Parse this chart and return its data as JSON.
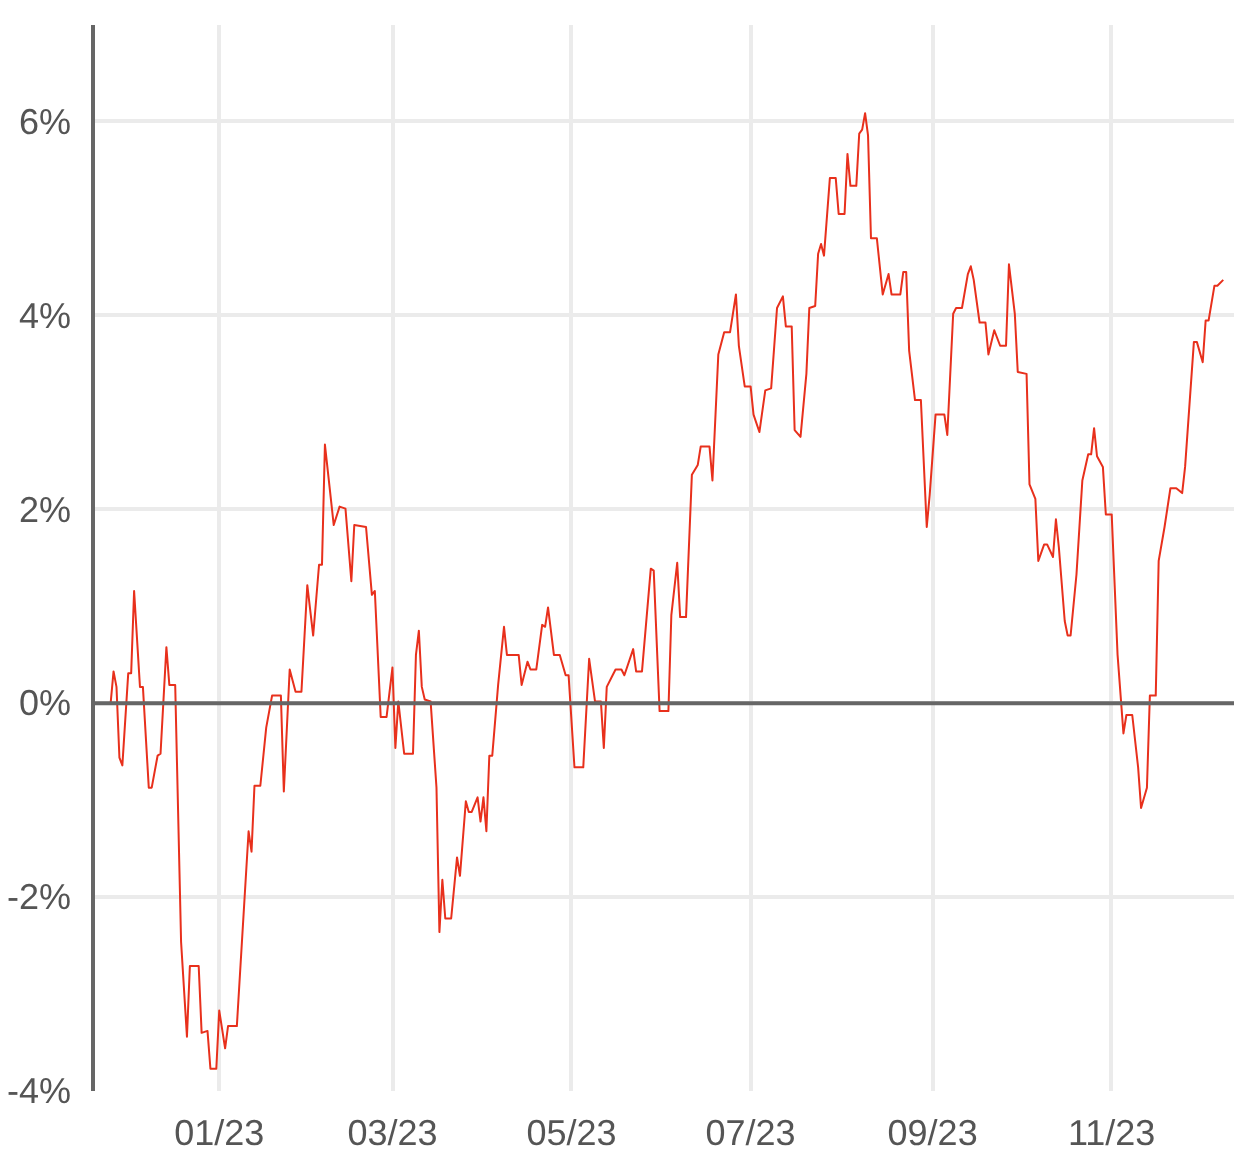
{
  "chart_data": {
    "type": "line",
    "x": [
      "2022-11-25",
      "2022-11-26",
      "2022-11-27",
      "2022-11-28",
      "2022-11-29",
      "2022-12-01",
      "2022-12-02",
      "2022-12-03",
      "2022-12-05",
      "2022-12-06",
      "2022-12-08",
      "2022-12-09",
      "2022-12-11",
      "2022-12-12",
      "2022-12-14",
      "2022-12-15",
      "2022-12-17",
      "2022-12-19",
      "2022-12-21",
      "2022-12-22",
      "2022-12-25",
      "2022-12-26",
      "2022-12-28",
      "2022-12-29",
      "2022-12-31",
      "2023-01-01",
      "2023-01-03",
      "2023-01-04",
      "2023-01-07",
      "2023-01-11",
      "2023-01-12",
      "2023-01-13",
      "2023-01-15",
      "2023-01-17",
      "2023-01-19",
      "2023-01-22",
      "2023-01-23",
      "2023-01-25",
      "2023-01-27",
      "2023-01-29",
      "2023-01-31",
      "2023-02-02",
      "2023-02-04",
      "2023-02-05",
      "2023-02-06",
      "2023-02-09",
      "2023-02-11",
      "2023-02-13",
      "2023-02-15",
      "2023-02-16",
      "2023-02-20",
      "2023-02-22",
      "2023-02-23",
      "2023-02-25",
      "2023-02-27",
      "2023-03-01",
      "2023-03-02",
      "2023-03-03",
      "2023-03-05",
      "2023-03-08",
      "2023-03-09",
      "2023-03-10",
      "2023-03-11",
      "2023-03-12",
      "2023-03-14",
      "2023-03-16",
      "2023-03-17",
      "2023-03-18",
      "2023-03-19",
      "2023-03-21",
      "2023-03-23",
      "2023-03-24",
      "2023-03-26",
      "2023-03-27",
      "2023-03-28",
      "2023-03-30",
      "2023-03-31",
      "2023-04-01",
      "2023-04-02",
      "2023-04-03",
      "2023-04-04",
      "2023-04-06",
      "2023-04-08",
      "2023-04-09",
      "2023-04-13",
      "2023-04-14",
      "2023-04-16",
      "2023-04-17",
      "2023-04-19",
      "2023-04-21",
      "2023-04-22",
      "2023-04-23",
      "2023-04-25",
      "2023-04-27",
      "2023-04-29",
      "2023-04-30",
      "2023-05-02",
      "2023-05-05",
      "2023-05-07",
      "2023-05-09",
      "2023-05-11",
      "2023-05-12",
      "2023-05-13",
      "2023-05-15",
      "2023-05-16",
      "2023-05-18",
      "2023-05-19",
      "2023-05-22",
      "2023-05-23",
      "2023-05-25",
      "2023-05-28",
      "2023-05-29",
      "2023-05-31",
      "2023-06-03",
      "2023-06-04",
      "2023-06-06",
      "2023-06-07",
      "2023-06-09",
      "2023-06-11",
      "2023-06-13",
      "2023-06-14",
      "2023-06-17",
      "2023-06-18",
      "2023-06-20",
      "2023-06-22",
      "2023-06-24",
      "2023-06-26",
      "2023-06-27",
      "2023-06-29",
      "2023-07-01",
      "2023-07-02",
      "2023-07-04",
      "2023-07-06",
      "2023-07-08",
      "2023-07-10",
      "2023-07-12",
      "2023-07-13",
      "2023-07-15",
      "2023-07-16",
      "2023-07-18",
      "2023-07-20",
      "2023-07-21",
      "2023-07-23",
      "2023-07-24",
      "2023-07-25",
      "2023-07-26",
      "2023-07-28",
      "2023-07-30",
      "2023-07-31",
      "2023-08-02",
      "2023-08-03",
      "2023-08-04",
      "2023-08-06",
      "2023-08-07",
      "2023-08-08",
      "2023-08-09",
      "2023-08-10",
      "2023-08-11",
      "2023-08-13",
      "2023-08-15",
      "2023-08-17",
      "2023-08-18",
      "2023-08-21",
      "2023-08-22",
      "2023-08-23",
      "2023-08-24",
      "2023-08-26",
      "2023-08-28",
      "2023-08-30",
      "2023-08-31",
      "2023-09-02",
      "2023-09-05",
      "2023-09-06",
      "2023-09-08",
      "2023-09-09",
      "2023-09-11",
      "2023-09-13",
      "2023-09-14",
      "2023-09-15",
      "2023-09-17",
      "2023-09-19",
      "2023-09-20",
      "2023-09-22",
      "2023-09-24",
      "2023-09-26",
      "2023-09-27",
      "2023-09-29",
      "2023-09-30",
      "2023-10-03",
      "2023-10-04",
      "2023-10-06",
      "2023-10-07",
      "2023-10-09",
      "2023-10-10",
      "2023-10-12",
      "2023-10-13",
      "2023-10-14",
      "2023-10-16",
      "2023-10-17",
      "2023-10-18",
      "2023-10-20",
      "2023-10-22",
      "2023-10-24",
      "2023-10-25",
      "2023-10-26",
      "2023-10-27",
      "2023-10-29",
      "2023-10-30",
      "2023-11-01",
      "2023-11-03",
      "2023-11-05",
      "2023-11-06",
      "2023-11-08",
      "2023-11-10",
      "2023-11-11",
      "2023-11-13",
      "2023-11-14",
      "2023-11-16",
      "2023-11-17",
      "2023-11-19",
      "2023-11-21",
      "2023-11-23",
      "2023-11-25",
      "2023-11-26",
      "2023-11-29",
      "2023-11-30",
      "2023-12-02",
      "2023-12-03",
      "2023-12-04",
      "2023-12-06",
      "2023-12-07",
      "2023-12-09"
    ],
    "series": [
      {
        "color": "#e8301c",
        "values": [
          0,
          0.33,
          0.17,
          -0.56,
          -0.64,
          0.31,
          0.31,
          1.16,
          0.17,
          0.17,
          -0.87,
          -0.87,
          -0.54,
          -0.52,
          0.58,
          0.19,
          0.19,
          -2.46,
          -3.44,
          -2.71,
          -2.71,
          -3.4,
          -3.38,
          -3.77,
          -3.77,
          -3.17,
          -3.56,
          -3.33,
          -3.33,
          -1.32,
          -1.53,
          -0.85,
          -0.85,
          -0.25,
          0.08,
          0.08,
          -0.91,
          0.35,
          0.12,
          0.12,
          1.22,
          0.7,
          1.43,
          1.43,
          2.67,
          1.84,
          2.03,
          2.01,
          1.26,
          1.84,
          1.82,
          1.12,
          1.16,
          -0.14,
          -0.14,
          0.37,
          -0.46,
          0.02,
          -0.52,
          -0.52,
          0.5,
          0.75,
          0.17,
          0.04,
          0.02,
          -0.87,
          -2.36,
          -1.82,
          -2.22,
          -2.22,
          -1.59,
          -1.78,
          -1.01,
          -1.12,
          -1.12,
          -0.97,
          -1.22,
          -0.97,
          -1.32,
          -0.54,
          -0.54,
          0.19,
          0.79,
          0.5,
          0.5,
          0.19,
          0.43,
          0.35,
          0.35,
          0.81,
          0.79,
          0.99,
          0.5,
          0.5,
          0.29,
          0.29,
          -0.66,
          -0.66,
          0.46,
          0.02,
          0.02,
          -0.46,
          0.17,
          0.29,
          0.35,
          0.35,
          0.29,
          0.56,
          0.33,
          0.33,
          1.39,
          1.37,
          -0.08,
          -0.08,
          0.91,
          1.45,
          0.89,
          0.89,
          2.36,
          2.46,
          2.65,
          2.65,
          2.3,
          3.6,
          3.83,
          3.83,
          4.22,
          3.69,
          3.27,
          3.27,
          2.98,
          2.8,
          3.23,
          3.25,
          4.08,
          4.2,
          3.89,
          3.89,
          2.82,
          2.75,
          3.4,
          4.08,
          4.1,
          4.64,
          4.74,
          4.62,
          5.42,
          5.42,
          5.05,
          5.05,
          5.67,
          5.34,
          5.34,
          5.88,
          5.92,
          6.09,
          5.86,
          4.8,
          4.8,
          4.22,
          4.43,
          4.22,
          4.22,
          4.45,
          4.45,
          3.64,
          3.13,
          3.13,
          1.82,
          2.15,
          2.98,
          2.98,
          2.77,
          4.02,
          4.08,
          4.08,
          4.43,
          4.51,
          4.37,
          3.93,
          3.93,
          3.6,
          3.85,
          3.69,
          3.69,
          4.53,
          4.02,
          3.42,
          3.4,
          2.26,
          2.11,
          1.47,
          1.64,
          1.64,
          1.51,
          1.9,
          1.61,
          0.85,
          0.7,
          0.7,
          1.33,
          2.3,
          2.57,
          2.57,
          2.84,
          2.55,
          2.44,
          1.95,
          1.95,
          0.5,
          -0.31,
          -0.12,
          -0.12,
          -0.66,
          -1.08,
          -0.87,
          0.08,
          0.08,
          1.47,
          1.82,
          2.22,
          2.22,
          2.17,
          2.44,
          3.73,
          3.73,
          3.52,
          3.95,
          3.95,
          4.31,
          4.31,
          4.37
        ]
      }
    ],
    "xlim": [
      "2022-11-19",
      "2023-12-13"
    ],
    "xticks": [
      {
        "value": "2023-01-01",
        "label": "01/23"
      },
      {
        "value": "2023-03-01",
        "label": "03/23"
      },
      {
        "value": "2023-05-01",
        "label": "05/23"
      },
      {
        "value": "2023-07-01",
        "label": "07/23"
      },
      {
        "value": "2023-09-01",
        "label": "09/23"
      },
      {
        "value": "2023-11-01",
        "label": "11/23"
      }
    ],
    "ylim": [
      -4,
      7
    ],
    "yticks": [
      {
        "value": -4,
        "label": "-4%"
      },
      {
        "value": -2,
        "label": "-2%"
      },
      {
        "value": 0,
        "label": "0%"
      },
      {
        "value": 2,
        "label": "2%"
      },
      {
        "value": 4,
        "label": "4%"
      },
      {
        "value": 6,
        "label": "6%"
      }
    ],
    "ref_lines": [
      {
        "axis": "y",
        "value": 0,
        "color": "#666666"
      }
    ],
    "grid": true,
    "line_style": "solid",
    "marker": "none"
  }
}
